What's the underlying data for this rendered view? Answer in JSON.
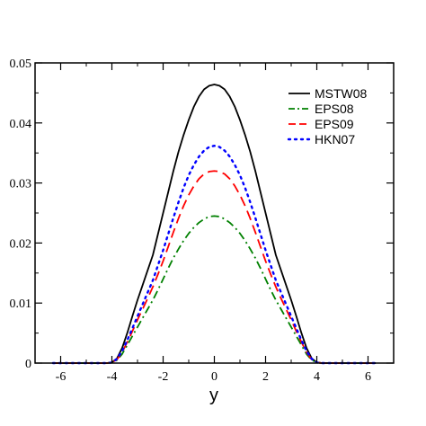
{
  "chart_data": {
    "type": "line",
    "title": "",
    "xlabel": "y",
    "ylabel": "",
    "xlim": [
      -7,
      7
    ],
    "ylim": [
      0,
      0.05
    ],
    "grid": false,
    "legend_position": "top-right",
    "x_ticks": [
      -6,
      -4,
      -2,
      0,
      2,
      4,
      6
    ],
    "x_tick_labels": [
      "-6",
      "-4",
      "-2",
      "0",
      "2",
      "4",
      "6"
    ],
    "y_ticks": [
      0,
      0.01,
      0.02,
      0.03,
      0.04,
      0.05
    ],
    "y_tick_labels": [
      "0",
      "0.01",
      "0.02",
      "0.03",
      "0.04",
      "0.05"
    ],
    "x": [
      -6.3,
      -5,
      -4.2,
      -4,
      -3.8,
      -3.6,
      -3.4,
      -3.2,
      -3,
      -2.8,
      -2.6,
      -2.4,
      -2.2,
      -2,
      -1.8,
      -1.6,
      -1.4,
      -1.2,
      -1,
      -0.8,
      -0.6,
      -0.4,
      -0.2,
      0,
      0.2,
      0.4,
      0.6,
      0.8,
      1,
      1.2,
      1.4,
      1.6,
      1.8,
      2,
      2.2,
      2.4,
      2.6,
      2.8,
      3,
      3.2,
      3.4,
      3.6,
      3.8,
      4,
      4.2,
      5,
      6.3
    ],
    "series": [
      {
        "name": "MSTW08",
        "color": "#000000",
        "dash": "solid",
        "values": [
          0,
          0,
          0,
          0.0001,
          0.0008,
          0.0025,
          0.005,
          0.0078,
          0.0105,
          0.013,
          0.0155,
          0.018,
          0.0215,
          0.025,
          0.0285,
          0.032,
          0.0352,
          0.038,
          0.0405,
          0.0427,
          0.0444,
          0.0456,
          0.0462,
          0.0464,
          0.0462,
          0.0456,
          0.0444,
          0.0427,
          0.0405,
          0.038,
          0.0352,
          0.032,
          0.0285,
          0.025,
          0.0215,
          0.018,
          0.0155,
          0.013,
          0.0105,
          0.0078,
          0.005,
          0.0025,
          0.0008,
          0.0001,
          0,
          0,
          0
        ]
      },
      {
        "name": "EPS08",
        "color": "#008000",
        "dash": "dashdot",
        "values": [
          0,
          0,
          0,
          0.0001,
          0.0005,
          0.0015,
          0.003,
          0.0045,
          0.006,
          0.0075,
          0.009,
          0.0105,
          0.0122,
          0.014,
          0.0158,
          0.0175,
          0.019,
          0.0204,
          0.0216,
          0.0226,
          0.0234,
          0.024,
          0.0244,
          0.0245,
          0.0244,
          0.024,
          0.0234,
          0.0226,
          0.0216,
          0.0204,
          0.019,
          0.0175,
          0.0158,
          0.014,
          0.0122,
          0.0105,
          0.009,
          0.0075,
          0.006,
          0.0045,
          0.003,
          0.0015,
          0.0005,
          0.0001,
          0,
          0,
          0
        ]
      },
      {
        "name": "EPS09",
        "color": "#ff0000",
        "dash": "dashed",
        "values": [
          0,
          0,
          0,
          0.0001,
          0.0006,
          0.0018,
          0.0035,
          0.0053,
          0.0072,
          0.009,
          0.0108,
          0.0127,
          0.0148,
          0.017,
          0.0194,
          0.0218,
          0.0241,
          0.0262,
          0.028,
          0.0295,
          0.0307,
          0.0315,
          0.0319,
          0.032,
          0.0319,
          0.0315,
          0.0307,
          0.0295,
          0.028,
          0.0262,
          0.0241,
          0.0218,
          0.0194,
          0.017,
          0.0148,
          0.0127,
          0.0108,
          0.009,
          0.0072,
          0.0053,
          0.0035,
          0.0018,
          0.0006,
          0.0001,
          0,
          0,
          0
        ]
      },
      {
        "name": "HKN07",
        "color": "#0000ff",
        "dash": "dotted",
        "values": [
          0,
          0,
          0,
          0.0001,
          0.0007,
          0.002,
          0.0038,
          0.0058,
          0.0078,
          0.0098,
          0.0118,
          0.0138,
          0.0163,
          0.0188,
          0.0215,
          0.0242,
          0.0268,
          0.0292,
          0.0313,
          0.033,
          0.0344,
          0.0354,
          0.036,
          0.0362,
          0.036,
          0.0354,
          0.0344,
          0.033,
          0.0313,
          0.0292,
          0.0268,
          0.0242,
          0.0215,
          0.0188,
          0.0163,
          0.0138,
          0.0118,
          0.0098,
          0.0078,
          0.0058,
          0.0038,
          0.002,
          0.0007,
          0.0001,
          0,
          0,
          0
        ]
      }
    ]
  }
}
